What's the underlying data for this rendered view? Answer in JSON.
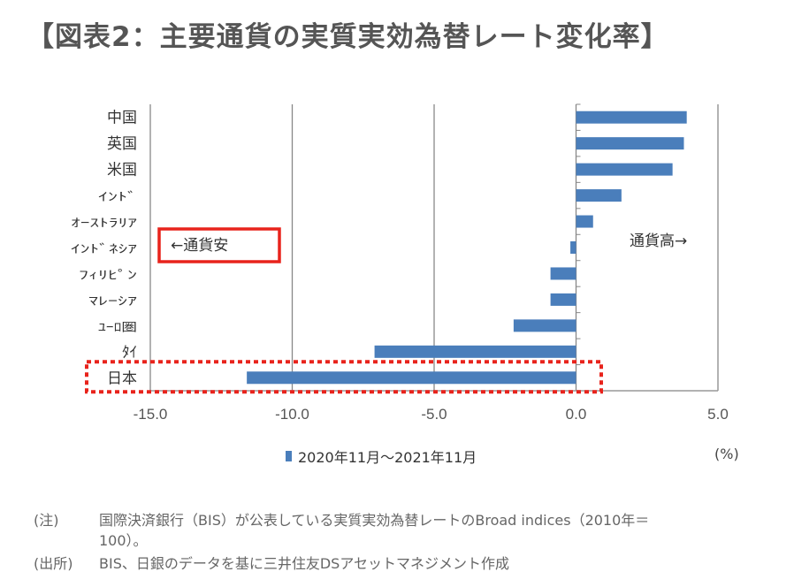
{
  "title": "【図表2：主要通貨の実質実効為替レート変化率】",
  "chart_data": {
    "type": "bar",
    "orientation": "horizontal",
    "categories": [
      "中国",
      "英国",
      "米国",
      "ｲﾝﾄﾞ",
      "ｵｰｽﾄﾗﾘｱ",
      "ｲﾝﾄﾞﾈｼｱ",
      "ﾌｨﾘﾋﾟﾝ",
      "ﾏﾚｰｼｱ",
      "ﾕｰﾛ圏",
      "ﾀｲ",
      "日本"
    ],
    "series": [
      {
        "name": "2020年11月～2021年11月",
        "values": [
          3.9,
          3.8,
          3.4,
          1.6,
          0.6,
          -0.2,
          -0.9,
          -0.9,
          -2.2,
          -7.1,
          -11.6
        ]
      }
    ],
    "xlim": [
      -15,
      5
    ],
    "xticks": [
      -15,
      -10,
      -5,
      0,
      5
    ],
    "xtick_labels": [
      "-15.0",
      "-10.0",
      "-5.0",
      "0.0",
      "5.0"
    ],
    "unit_label": "(%)",
    "legend_position": "bottom",
    "grid": true,
    "annotations": {
      "left": "←通貨安",
      "right": "通貨高→"
    },
    "highlight_category": "日本",
    "bar_color": "#4a7ebb",
    "highlight_color": "#e8231c"
  },
  "notes": {
    "note_label": "(注)",
    "note_line1": "国際決済銀行（BIS）が公表している実質実効為替レートのBroad indices（2010年＝",
    "note_line2": "100）。",
    "source_label": "(出所)",
    "source_text": "BIS、日銀のデータを基に三井住友DSアセットマネジメント作成"
  }
}
